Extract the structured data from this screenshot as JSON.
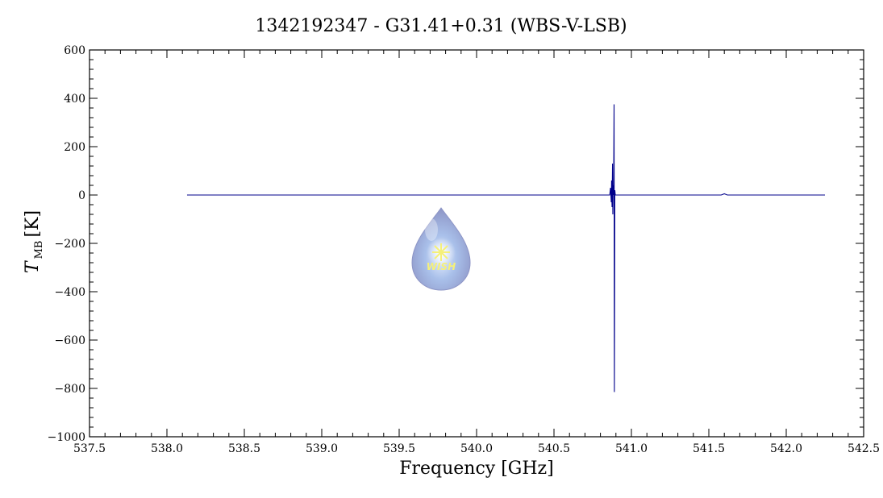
{
  "chart_data": {
    "type": "line",
    "title": "1342192347 - G31.41+0.31 (WBS-V-LSB)",
    "xlabel": "Frequency [GHz]",
    "ylabel_main": "T",
    "ylabel_sub": "MB",
    "ylabel_unit": "[K]",
    "xlim": [
      537.5,
      542.5
    ],
    "ylim": [
      -1000,
      600
    ],
    "x_ticks": [
      537.5,
      538.0,
      538.5,
      539.0,
      539.5,
      540.0,
      540.5,
      541.0,
      541.5,
      542.0,
      542.5
    ],
    "x_tick_labels": [
      "537.5",
      "538.0",
      "538.5",
      "539.0",
      "539.5",
      "540.0",
      "540.5",
      "541.0",
      "541.5",
      "542.0",
      "542.5"
    ],
    "y_ticks": [
      -1000,
      -800,
      -600,
      -400,
      -200,
      0,
      200,
      400,
      600
    ],
    "y_tick_labels": [
      "−1000",
      "−800",
      "−600",
      "−400",
      "−200",
      "0",
      "200",
      "400",
      "600"
    ],
    "grid": false,
    "series_color": "#00008b",
    "series": [
      {
        "x": [
          538.13,
          540.86,
          540.865,
          540.87,
          540.872,
          540.875,
          540.878,
          540.88,
          540.882,
          540.885,
          540.888,
          540.89,
          540.893,
          540.896,
          540.9,
          541.58,
          541.6,
          541.62,
          542.25
        ],
        "y": [
          0,
          0,
          30,
          -30,
          60,
          -50,
          130,
          -80,
          40,
          0,
          375,
          -815,
          20,
          0,
          0,
          0,
          5,
          0,
          0
        ]
      }
    ]
  },
  "logo": {
    "name": "wish-logo",
    "text": "WISH"
  }
}
